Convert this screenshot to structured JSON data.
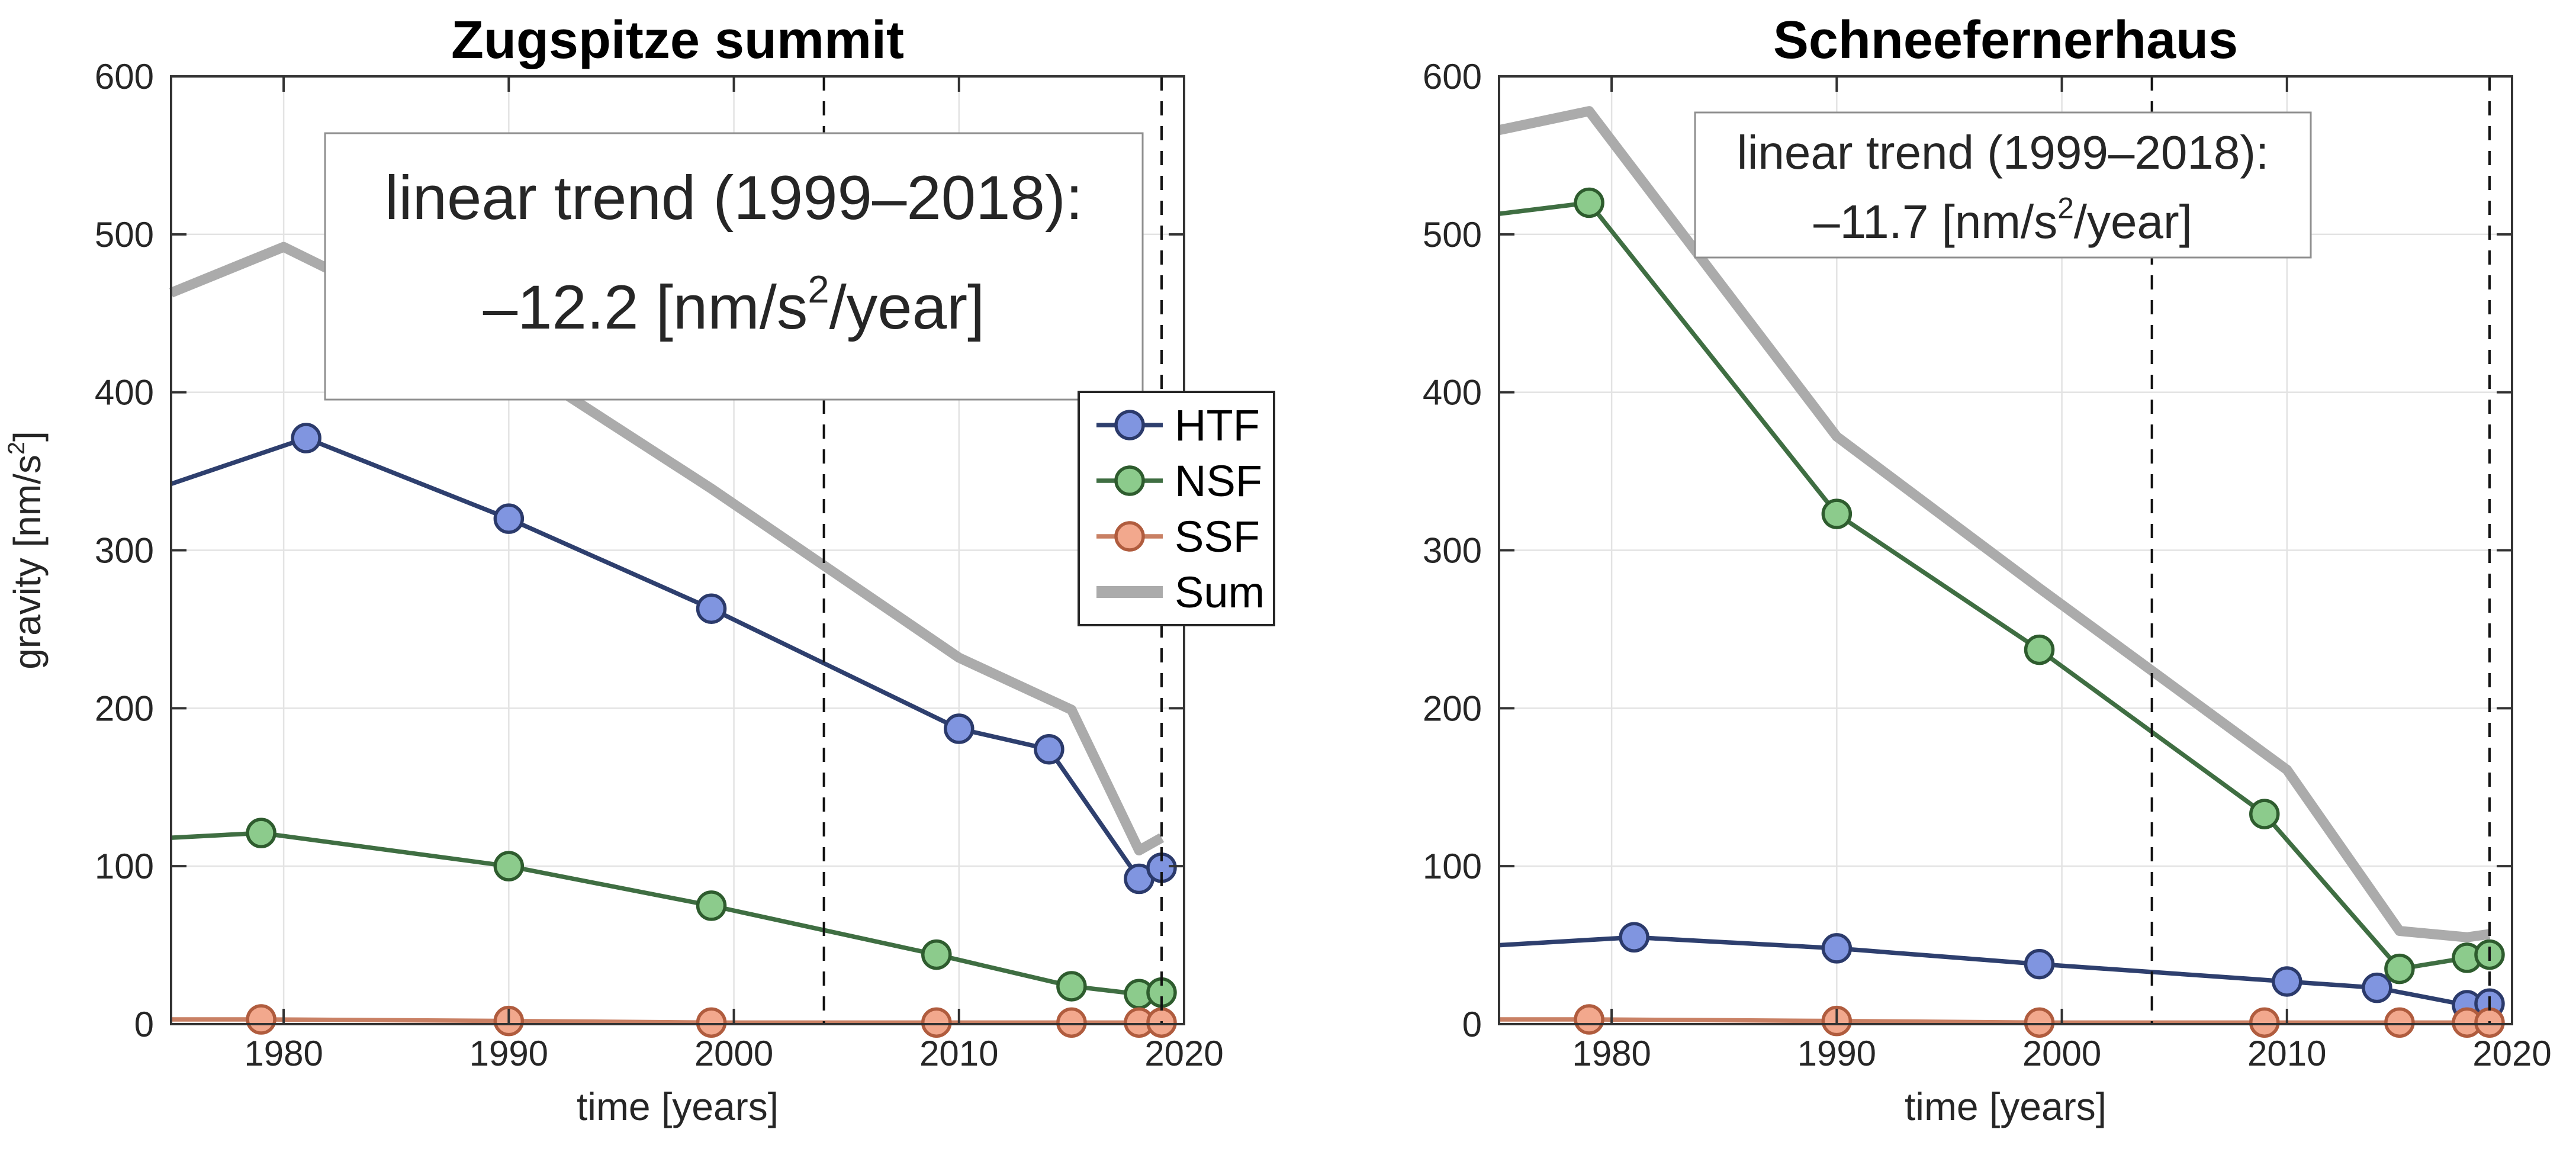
{
  "figure": {
    "background": "#ffffff",
    "axis_color": "#333333",
    "grid_color": "#e3e3e3",
    "dashed_line_color": "#111111",
    "annotation_border_color": "#8f8f8f",
    "tick_label_color": "#262626"
  },
  "palette": {
    "HTF": {
      "line": "#2e3f6e",
      "marker_fill": "#8095e0",
      "marker_edge": "#2b3a6b"
    },
    "NSF": {
      "line": "#3f6e42",
      "marker_fill": "#8ccb8c",
      "marker_edge": "#2e5c2e"
    },
    "SSF": {
      "line": "#c98064",
      "marker_fill": "#f2a88d",
      "marker_edge": "#b05c3e"
    },
    "Sum": {
      "line": "#ababab",
      "marker_fill": "#ababab",
      "marker_edge": "#ababab"
    }
  },
  "legend": {
    "items": [
      {
        "label": "HTF",
        "series": "HTF",
        "marker": true
      },
      {
        "label": "NSF",
        "series": "NSF",
        "marker": true
      },
      {
        "label": "SSF",
        "series": "SSF",
        "marker": true
      },
      {
        "label": "Sum",
        "series": "Sum",
        "marker": false
      }
    ]
  },
  "chart_data": [
    {
      "type": "line",
      "title": "Zugspitze summit",
      "xlabel": "time [years]",
      "ylabel": "gravity [nm/s²]",
      "xlim": [
        1975,
        2020
      ],
      "ylim": [
        0,
        600
      ],
      "xticks": [
        1980,
        1990,
        2000,
        2010,
        2020
      ],
      "yticks": [
        0,
        100,
        200,
        300,
        400,
        500,
        600
      ],
      "grid": true,
      "dashed_vlines": [
        2004,
        2019
      ],
      "annotation": {
        "line1": "linear trend (1999–2018):",
        "line2": "–12.2 [nm/s²/year]"
      },
      "series": [
        {
          "name": "Sum",
          "markers": false,
          "x": [
            1975,
            1980,
            1990,
            1999,
            2010,
            2015,
            2018,
            2019
          ],
          "y": [
            463,
            492,
            422,
            339,
            232,
            199,
            110,
            118
          ]
        },
        {
          "name": "HTF",
          "markers": true,
          "x": [
            1975,
            1981,
            1990,
            1999,
            2010,
            2014,
            2018,
            2019
          ],
          "y": [
            342,
            371,
            320,
            263,
            187,
            174,
            92,
            99
          ]
        },
        {
          "name": "NSF",
          "markers": true,
          "x": [
            1975,
            1979,
            1990,
            1999,
            2009,
            2015,
            2018,
            2019
          ],
          "y": [
            118,
            121,
            100,
            75,
            44,
            24,
            19,
            20
          ]
        },
        {
          "name": "SSF",
          "markers": true,
          "x": [
            1975,
            1979,
            1990,
            1999,
            2009,
            2015,
            2018,
            2019
          ],
          "y": [
            3,
            3,
            2,
            1,
            1,
            1,
            1,
            1
          ]
        }
      ]
    },
    {
      "type": "line",
      "title": "Schneefernerhaus",
      "xlabel": "time [years]",
      "ylabel": "",
      "xlim": [
        1975,
        2020
      ],
      "ylim": [
        0,
        600
      ],
      "xticks": [
        1980,
        1990,
        2000,
        2010,
        2020
      ],
      "yticks": [
        0,
        100,
        200,
        300,
        400,
        500,
        600
      ],
      "grid": true,
      "dashed_vlines": [
        2004,
        2019
      ],
      "annotation": {
        "line1": "linear trend (1999–2018):",
        "line2": "–11.7 [nm/s²/year]"
      },
      "series": [
        {
          "name": "Sum",
          "markers": false,
          "x": [
            1975,
            1979,
            1990,
            1999,
            2010,
            2015,
            2018,
            2019
          ],
          "y": [
            566,
            578,
            372,
            276,
            161,
            59,
            55,
            57
          ]
        },
        {
          "name": "HTF",
          "markers": true,
          "x": [
            1975,
            1981,
            1990,
            1999,
            2010,
            2014,
            2018,
            2019
          ],
          "y": [
            50,
            55,
            48,
            38,
            27,
            23,
            12,
            13
          ]
        },
        {
          "name": "NSF",
          "markers": true,
          "x": [
            1975,
            1979,
            1990,
            1999,
            2009,
            2015,
            2018,
            2019
          ],
          "y": [
            513,
            520,
            323,
            237,
            133,
            35,
            42,
            44
          ]
        },
        {
          "name": "SSF",
          "markers": true,
          "x": [
            1975,
            1979,
            1990,
            1999,
            2009,
            2015,
            2018,
            2019
          ],
          "y": [
            3,
            3,
            2,
            1,
            1,
            1,
            1,
            1
          ]
        }
      ]
    }
  ]
}
